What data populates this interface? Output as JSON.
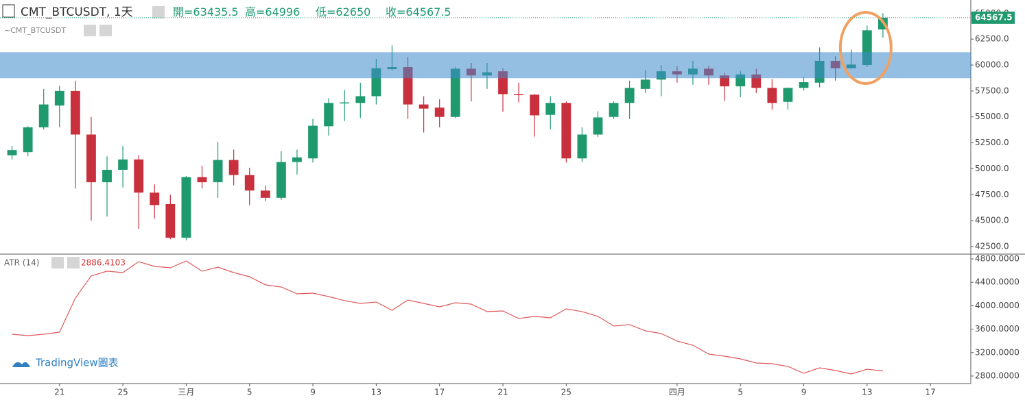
{
  "chart_data": [
    {
      "type": "candlestick",
      "title": "CMT_BTCUSDT, 1天",
      "subtitle": "~CMT_BTCUSDT",
      "ohlc_header": [
        {
          "label": "開=",
          "value": 63435.5
        },
        {
          "label": "高=",
          "value": 64996.0
        },
        {
          "label": "低=",
          "value": 62650.0
        },
        {
          "label": "收=",
          "value": 64567.5
        }
      ],
      "up_color": "#1f9a6f",
      "down_color": "#c9303e",
      "open": [
        51300,
        51600,
        54000,
        56100,
        57500,
        53300,
        48700,
        49900,
        50900,
        47700,
        46600,
        43350,
        49200,
        48700,
        50850,
        49400,
        47900,
        47200,
        50650,
        51000,
        54100,
        56300,
        56350,
        57000,
        59600,
        59800,
        56200,
        55900,
        55000,
        59650,
        59000,
        59400,
        57200,
        57150,
        55200,
        56350,
        51000,
        53300,
        55000,
        56350,
        57700,
        58600,
        59400,
        59100,
        59650,
        59000,
        57950,
        59100,
        57800,
        56450,
        57800,
        58300,
        60400,
        59700,
        60000,
        63435.5
      ],
      "high": [
        52200,
        54100,
        57700,
        58000,
        58500,
        55000,
        51200,
        52200,
        51300,
        48500,
        47500,
        49300,
        50300,
        52600,
        51850,
        50100,
        48400,
        51700,
        51850,
        54800,
        56800,
        57600,
        58300,
        60600,
        61900,
        60800,
        57000,
        56700,
        59800,
        60200,
        60200,
        59700,
        58300,
        57200,
        57000,
        56500,
        54000,
        55550,
        56500,
        58500,
        59500,
        60000,
        59900,
        60400,
        59900,
        59250,
        59450,
        59650,
        58650,
        57850,
        58850,
        61700,
        60850,
        61500,
        63800,
        64996
      ],
      "low": [
        50900,
        51200,
        53800,
        54000,
        48100,
        45000,
        45400,
        48200,
        44200,
        45200,
        43200,
        43100,
        48100,
        47200,
        48400,
        46500,
        46900,
        47000,
        49450,
        50600,
        53200,
        54600,
        54900,
        56200,
        59500,
        54800,
        53500,
        54000,
        54900,
        56500,
        57700,
        55500,
        56400,
        53100,
        53800,
        50600,
        50650,
        53050,
        54800,
        54800,
        57300,
        57000,
        58300,
        58100,
        58100,
        56550,
        56900,
        57300,
        55700,
        55700,
        57550,
        57850,
        58500,
        59650,
        59850,
        62650
      ],
      "close": [
        51800,
        54000,
        56200,
        57500,
        53300,
        48700,
        49900,
        50900,
        47700,
        46500,
        43350,
        49200,
        48700,
        50850,
        49400,
        47900,
        47200,
        50650,
        51100,
        54150,
        56350,
        56400,
        57000,
        59700,
        59800,
        56200,
        55800,
        55000,
        59650,
        59000,
        59300,
        57200,
        57100,
        55150,
        56350,
        51000,
        53300,
        54950,
        56350,
        57800,
        58600,
        59400,
        59100,
        59650,
        59000,
        57950,
        59100,
        57800,
        56350,
        57800,
        58350,
        60400,
        59700,
        60050,
        63350,
        64567.5
      ],
      "zone": {
        "from": 58730,
        "to": 61240,
        "color": "#3d8bcc"
      },
      "xlim": [
        -0.76,
        60.55
      ],
      "xticks": [
        {
          "value": 3,
          "label": "21"
        },
        {
          "value": 7,
          "label": "25"
        },
        {
          "value": 11,
          "label": "三月"
        },
        {
          "value": 15,
          "label": "5"
        },
        {
          "value": 19,
          "label": "9"
        },
        {
          "value": 23,
          "label": "13"
        },
        {
          "value": 27,
          "label": "17"
        },
        {
          "value": 31,
          "label": "21"
        },
        {
          "value": 35,
          "label": "25"
        },
        {
          "value": 42,
          "label": "四月"
        },
        {
          "value": 46,
          "label": "5"
        },
        {
          "value": 50,
          "label": "9"
        },
        {
          "value": 54,
          "label": "13"
        },
        {
          "value": 58,
          "label": "17"
        }
      ],
      "ylim": [
        41772,
        66275
      ],
      "yticks": [
        {
          "value": 42500,
          "label": "42500.0"
        },
        {
          "value": 45000,
          "label": "45000.0"
        },
        {
          "value": 47500,
          "label": "47500.0"
        },
        {
          "value": 50000,
          "label": "50000.0"
        },
        {
          "value": 52500,
          "label": "52500.0"
        },
        {
          "value": 55000,
          "label": "55000.0"
        },
        {
          "value": 57500,
          "label": "57500.0"
        },
        {
          "value": 60000,
          "label": "60000.0"
        },
        {
          "value": 62500,
          "label": "62500.0"
        },
        {
          "value": 65000,
          "label": "65000.0"
        }
      ],
      "grid": false
    },
    {
      "type": "line",
      "title": "ATR (14)",
      "color": "#e0585a",
      "values": [
        3513,
        3490,
        3513,
        3549,
        4133,
        4508,
        4590,
        4566,
        4753,
        4671,
        4648,
        4765,
        4590,
        4660,
        4566,
        4496,
        4356,
        4320,
        4203,
        4215,
        4157,
        4087,
        4040,
        4063,
        3923,
        4098,
        4040,
        3981,
        4051,
        4028,
        3900,
        3911,
        3782,
        3818,
        3794,
        3946,
        3900,
        3818,
        3654,
        3677,
        3572,
        3525,
        3397,
        3326,
        3174,
        3139,
        3092,
        3022,
        3010,
        2964,
        2847,
        2940,
        2894,
        2835,
        2917,
        2886.4103
      ],
      "xlim": [
        -0.76,
        60.55
      ],
      "ylim": [
        2671,
        4870
      ],
      "yticks": [
        {
          "value": 2800,
          "label": "2800.0000"
        },
        {
          "value": 3200,
          "label": "3200.0000"
        },
        {
          "value": 3600,
          "label": "3600.0000"
        },
        {
          "value": 4000,
          "label": "4000.0000"
        },
        {
          "value": 4400,
          "label": "4400.0000"
        },
        {
          "value": 4800,
          "label": "4800.0000"
        }
      ],
      "grid": false
    }
  ],
  "watermark": "TradingView圖表"
}
